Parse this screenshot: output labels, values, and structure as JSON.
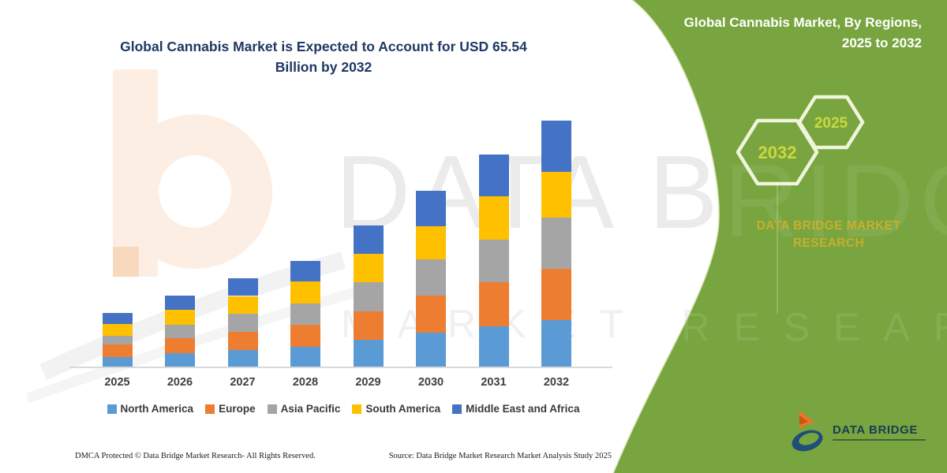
{
  "title": {
    "line1": "Global Cannabis Market is Expected to Account for USD 65.54",
    "line2": "Billion by 2032"
  },
  "side_panel": {
    "heading_line1": "Global Cannabis Market, By Regions,",
    "heading_line2": "2025 to 2032",
    "hexagons": [
      {
        "label": "2032"
      },
      {
        "label": "2025"
      }
    ],
    "brand_caption_line1": "DATA BRIDGE MARKET",
    "brand_caption_line2": "RESEARCH",
    "logo_text": "DATA BRIDGE"
  },
  "watermark": {
    "primary": "DATA BRIDGE",
    "secondary": "MARKET RESEARCH"
  },
  "footer": {
    "left": "DMCA Protected © Data Bridge Market Research-  All Rights Reserved.",
    "source": "Source: Data Bridge Market Research  Market Analysis Study 2025"
  },
  "colors": {
    "panel_green": "#78A53F",
    "title_navy": "#1F3864",
    "axis_text": "#3F3F3F",
    "gold_text": "#C8AE2F",
    "hexagon_label": "#CCD83E",
    "hexagon_stroke": "#F1F4DA"
  },
  "chart_data": {
    "type": "bar",
    "subtype": "stacked-vertical",
    "title": "Global Cannabis Market is Expected to Account for USD 65.54 Billion by 2032",
    "unit": "USD Billion",
    "categories": [
      "2025",
      "2026",
      "2027",
      "2028",
      "2029",
      "2030",
      "2031",
      "2032"
    ],
    "stack_order_bottom_to_top": [
      "North America",
      "Europe",
      "Asia Pacific",
      "South America",
      "Middle East and Africa"
    ],
    "series": [
      {
        "name": "North America",
        "color": "#5B9BD5",
        "values": [
          2.6,
          3.6,
          4.4,
          5.3,
          7.1,
          9.1,
          10.7,
          12.3
        ]
      },
      {
        "name": "Europe",
        "color": "#ED7D31",
        "values": [
          3.2,
          4.0,
          4.9,
          5.8,
          7.7,
          9.9,
          11.7,
          13.7
        ]
      },
      {
        "name": "Asia Pacific",
        "color": "#A5A5A5",
        "values": [
          2.3,
          3.5,
          4.7,
          5.7,
          7.6,
          9.5,
          11.5,
          13.7
        ]
      },
      {
        "name": "South America",
        "color": "#FFC000",
        "values": [
          3.3,
          4.0,
          4.8,
          5.8,
          7.7,
          8.9,
          11.5,
          12.2
        ]
      },
      {
        "name": "Middle East and Africa",
        "color": "#4472C4",
        "values": [
          2.8,
          3.8,
          4.8,
          5.5,
          7.4,
          9.5,
          11.1,
          13.64
        ]
      }
    ],
    "totals": [
      14.2,
      18.9,
      23.6,
      28.1,
      37.5,
      46.9,
      56.5,
      65.54
    ],
    "ylim": [
      0,
      68
    ],
    "grid": false,
    "axis_labels_shown": "x-only",
    "legend_position": "bottom"
  }
}
